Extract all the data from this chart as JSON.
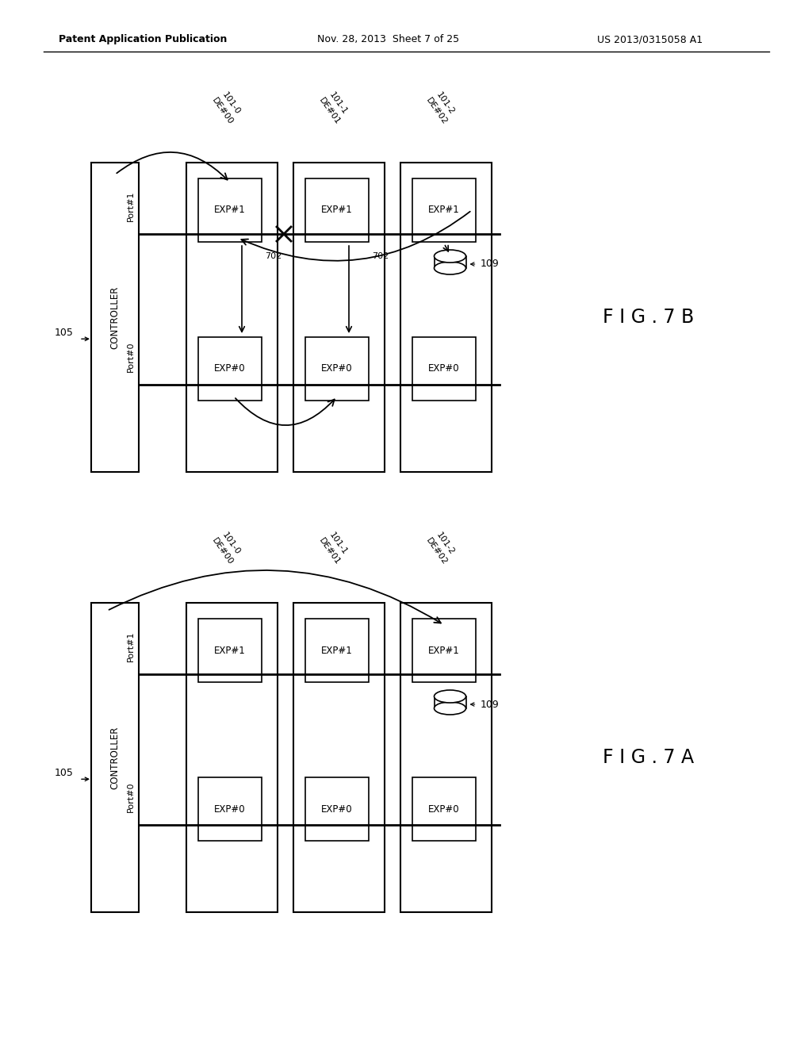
{
  "background": "#ffffff",
  "header_left": "Patent Application Publication",
  "header_mid": "Nov. 28, 2013  Sheet 7 of 25",
  "header_right": "US 2013/0315058 A1",
  "fig_label_A": "F I G . 7 A",
  "fig_label_B": "F I G . 7 B",
  "controller_label": "CONTROLLER",
  "controller_ref": "105",
  "port1_label": "Port#1",
  "port0_label": "Port#0",
  "de_labels": [
    "DE#00",
    "DE#01",
    "DE#02"
  ],
  "de_refs": [
    "101-0",
    "101-1",
    "101-2"
  ],
  "exp1_labels": [
    "EXP#1",
    "EXP#1",
    "EXP#1"
  ],
  "exp0_labels": [
    "EXP#0",
    "EXP#0",
    "EXP#0"
  ],
  "disk_ref": "109",
  "arrow702_ref": "702"
}
